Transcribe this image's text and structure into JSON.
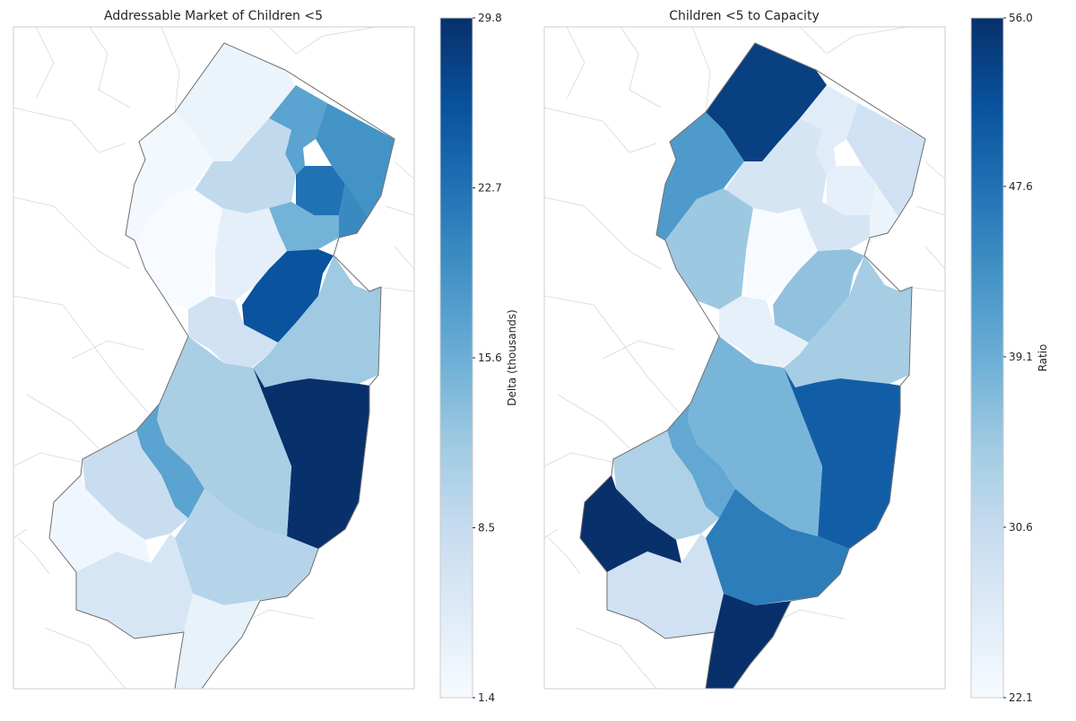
{
  "maps": [
    {
      "title": "Addressable Market of Children <5",
      "colorbar_label": "Delta (thousands)",
      "ticks": [
        "29.8",
        "22.7",
        "15.6",
        "8.5",
        "1.4"
      ],
      "colormap": "Blues",
      "county_values": {
        "sussex": 3.0,
        "warren": 2.0,
        "morris": 9.0,
        "hunterdon": 1.4,
        "somerset": 4.0,
        "passaic": 17.0,
        "bergen": 19.0,
        "essex": 22.7,
        "hudson": 20.0,
        "union": 15.0,
        "middlesex": 26.0,
        "mercer": 7.0,
        "monmouth": 12.0,
        "ocean": 29.8,
        "burlington": 11.0,
        "camden": 17.0,
        "gloucester": 8.0,
        "salem": 2.5,
        "atlantic": 10.0,
        "cumberland": 6.0,
        "cape_may": 3.5
      }
    },
    {
      "title": "Children <5 to Capacity",
      "colorbar_label": "Ratio",
      "ticks": [
        "56.0",
        "47.6",
        "39.1",
        "30.6",
        "22.1"
      ],
      "colormap": "Blues",
      "county_values": {
        "sussex": 54.0,
        "warren": 42.0,
        "morris": 28.0,
        "hunterdon": 35.0,
        "somerset": 22.1,
        "passaic": 26.0,
        "bergen": 29.0,
        "essex": 25.0,
        "hudson": 24.0,
        "union": 28.0,
        "middlesex": 36.0,
        "mercer": 25.0,
        "monmouth": 34.0,
        "ocean": 50.0,
        "burlington": 38.0,
        "camden": 40.0,
        "gloucester": 33.0,
        "salem": 56.0,
        "atlantic": 46.0,
        "cumberland": 29.0,
        "cape_may": 56.0
      }
    }
  ]
}
